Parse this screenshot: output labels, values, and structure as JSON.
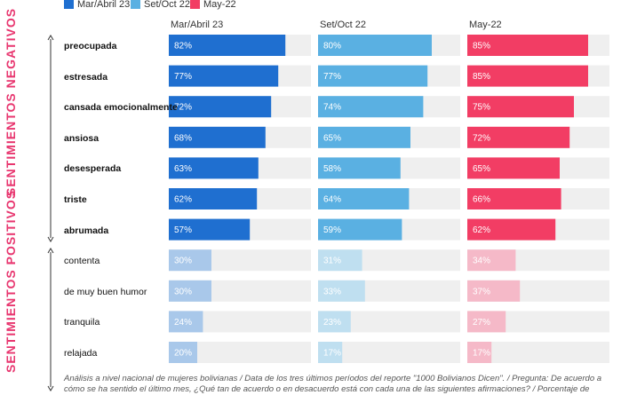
{
  "legend": [
    {
      "label": "Mar/Abril 23",
      "color": "#1f6fd0"
    },
    {
      "label": "Set/Oct 22",
      "color": "#5ab0e2"
    },
    {
      "label": "May-22",
      "color": "#f23d64"
    }
  ],
  "groups": {
    "negative": "SENTIMIENTOS NEGATIVOS",
    "positive": "SENTIMIENTOS POSITIVOS"
  },
  "chart_data": {
    "type": "bar",
    "orientation": "horizontal",
    "value_suffix": "%",
    "xlim": [
      0,
      100
    ],
    "categories": [
      "preocupada",
      "estresada",
      "cansada emocionalmente",
      "ansiosa",
      "desesperada",
      "triste",
      "abrumada",
      "contenta",
      "de muy buen humor",
      "tranquila",
      "relajada"
    ],
    "category_group": [
      "negative",
      "negative",
      "negative",
      "negative",
      "negative",
      "negative",
      "negative",
      "positive",
      "positive",
      "positive",
      "positive"
    ],
    "series": [
      {
        "name": "Mar/Abril 23",
        "color": "#1f6fd0",
        "muted_color": "#a9c8ea",
        "values": [
          82,
          77,
          72,
          68,
          63,
          62,
          57,
          30,
          30,
          24,
          20
        ]
      },
      {
        "name": "Set/Oct 22",
        "color": "#5ab0e2",
        "muted_color": "#bfdff0",
        "values": [
          80,
          77,
          74,
          65,
          58,
          64,
          59,
          31,
          33,
          23,
          17
        ]
      },
      {
        "name": "May-22",
        "color": "#f23d64",
        "muted_color": "#f5b9c8",
        "values": [
          85,
          85,
          75,
          72,
          65,
          66,
          62,
          34,
          37,
          27,
          17
        ]
      }
    ],
    "track_color": "#efefef"
  },
  "footnote": "Análisis a nivel nacional de mujeres bolivianas / Data de los tres últimos períodos del reporte \"1000 Bolivianos Dicen\". / Pregunta: De acuerdo a cómo se ha sentido el último mes, ¿Qué tan de acuerdo o en desacuerdo está con cada una de las siguientes afirmaciones? / Porcentaje de"
}
